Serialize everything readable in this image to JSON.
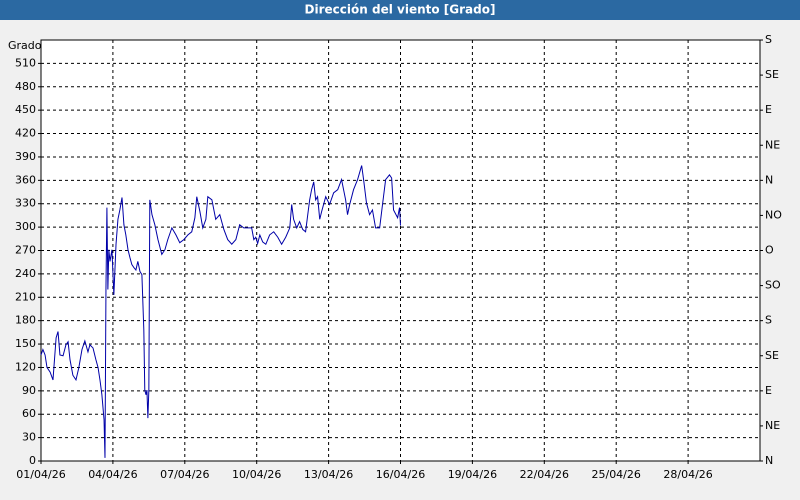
{
  "chart_data": {
    "type": "line",
    "title": "Dirección del viento [Grado]",
    "ylabel": "Grado",
    "x": [
      0,
      0.08,
      0.17,
      0.25,
      0.38,
      0.5,
      0.63,
      0.71,
      0.79,
      0.92,
      1.04,
      1.13,
      1.21,
      1.33,
      1.46,
      1.58,
      1.71,
      1.83,
      1.96,
      2.04,
      2.17,
      2.29,
      2.38,
      2.46,
      2.54,
      2.63,
      2.67,
      2.71,
      2.75,
      2.79,
      2.83,
      2.88,
      2.96,
      3.04,
      3.13,
      3.21,
      3.29,
      3.38,
      3.46,
      3.54,
      3.63,
      3.71,
      3.79,
      3.88,
      3.96,
      4.04,
      4.13,
      4.21,
      4.29,
      4.33,
      4.38,
      4.42,
      4.46,
      4.5,
      4.54,
      4.63,
      4.75,
      4.88,
      5.04,
      5.17,
      5.29,
      5.46,
      5.63,
      5.79,
      5.96,
      6.13,
      6.29,
      6.42,
      6.5,
      6.63,
      6.75,
      6.88,
      6.96,
      7.13,
      7.29,
      7.46,
      7.63,
      7.79,
      7.96,
      8.13,
      8.29,
      8.46,
      8.63,
      8.79,
      8.88,
      8.96,
      9.04,
      9.13,
      9.25,
      9.38,
      9.54,
      9.71,
      9.88,
      10.04,
      10.21,
      10.38,
      10.46,
      10.54,
      10.67,
      10.79,
      10.92,
      11.04,
      11.13,
      11.21,
      11.29,
      11.38,
      11.46,
      11.54,
      11.63,
      11.71,
      11.88,
      12.04,
      12.21,
      12.38,
      12.54,
      12.71,
      12.79,
      12.88,
      13.04,
      13.21,
      13.38,
      13.46,
      13.58,
      13.71,
      13.83,
      13.96,
      14.13,
      14.25,
      14.38,
      14.54,
      14.63,
      14.71,
      14.88,
      14.96,
      15
    ],
    "series": [
      {
        "color": "#0000a8",
        "values": [
          136,
          143,
          136,
          120,
          114,
          104,
          158,
          166,
          136,
          135,
          149,
          153,
          130,
          110,
          104,
          120,
          143,
          154,
          140,
          149,
          145,
          130,
          120,
          104,
          85,
          53,
          4,
          220,
          325,
          220,
          271,
          256,
          271,
          213,
          278,
          310,
          322,
          338,
          303,
          290,
          271,
          261,
          252,
          248,
          245,
          256,
          243,
          239,
          168,
          91,
          85,
          91,
          55,
          91,
          335,
          316,
          303,
          284,
          265,
          271,
          284,
          299,
          290,
          280,
          284,
          290,
          294,
          312,
          339,
          320,
          299,
          310,
          339,
          335,
          310,
          316,
          297,
          284,
          278,
          284,
          303,
          299,
          299,
          299,
          284,
          287,
          279,
          290,
          281,
          278,
          290,
          294,
          287,
          278,
          287,
          299,
          329,
          310,
          299,
          307,
          297,
          294,
          316,
          335,
          348,
          358,
          335,
          339,
          310,
          320,
          339,
          329,
          344,
          348,
          361,
          335,
          316,
          329,
          348,
          361,
          379,
          361,
          331,
          316,
          322,
          299,
          299,
          329,
          361,
          367,
          363,
          322,
          312,
          325,
          302
        ]
      }
    ],
    "xlim": [
      0,
      30
    ],
    "xticks": [
      {
        "value": 0,
        "label": "01/04/26"
      },
      {
        "value": 3,
        "label": "04/04/26"
      },
      {
        "value": 6,
        "label": "07/04/26"
      },
      {
        "value": 9,
        "label": "10/04/26"
      },
      {
        "value": 12,
        "label": "13/04/26"
      },
      {
        "value": 15,
        "label": "16/04/26"
      },
      {
        "value": 18,
        "label": "19/04/26"
      },
      {
        "value": 21,
        "label": "22/04/26"
      },
      {
        "value": 24,
        "label": "25/04/26"
      },
      {
        "value": 27,
        "label": "28/04/26"
      }
    ],
    "ylim": [
      0,
      540
    ],
    "yticks": [
      0,
      30,
      60,
      90,
      120,
      150,
      180,
      210,
      240,
      270,
      300,
      330,
      360,
      390,
      420,
      450,
      480,
      510
    ],
    "y2lim": [
      0,
      540
    ],
    "y2ticks": [
      {
        "value": 0,
        "label": "N"
      },
      {
        "value": 45,
        "label": "NE"
      },
      {
        "value": 90,
        "label": "E"
      },
      {
        "value": 135,
        "label": "SE"
      },
      {
        "value": 180,
        "label": "S"
      },
      {
        "value": 225,
        "label": "SO"
      },
      {
        "value": 270,
        "label": "O"
      },
      {
        "value": 315,
        "label": "NO"
      },
      {
        "value": 360,
        "label": "N"
      },
      {
        "value": 405,
        "label": "NE"
      },
      {
        "value": 450,
        "label": "E"
      },
      {
        "value": 495,
        "label": "SE"
      },
      {
        "value": 540,
        "label": "S"
      }
    ],
    "grid": true
  }
}
